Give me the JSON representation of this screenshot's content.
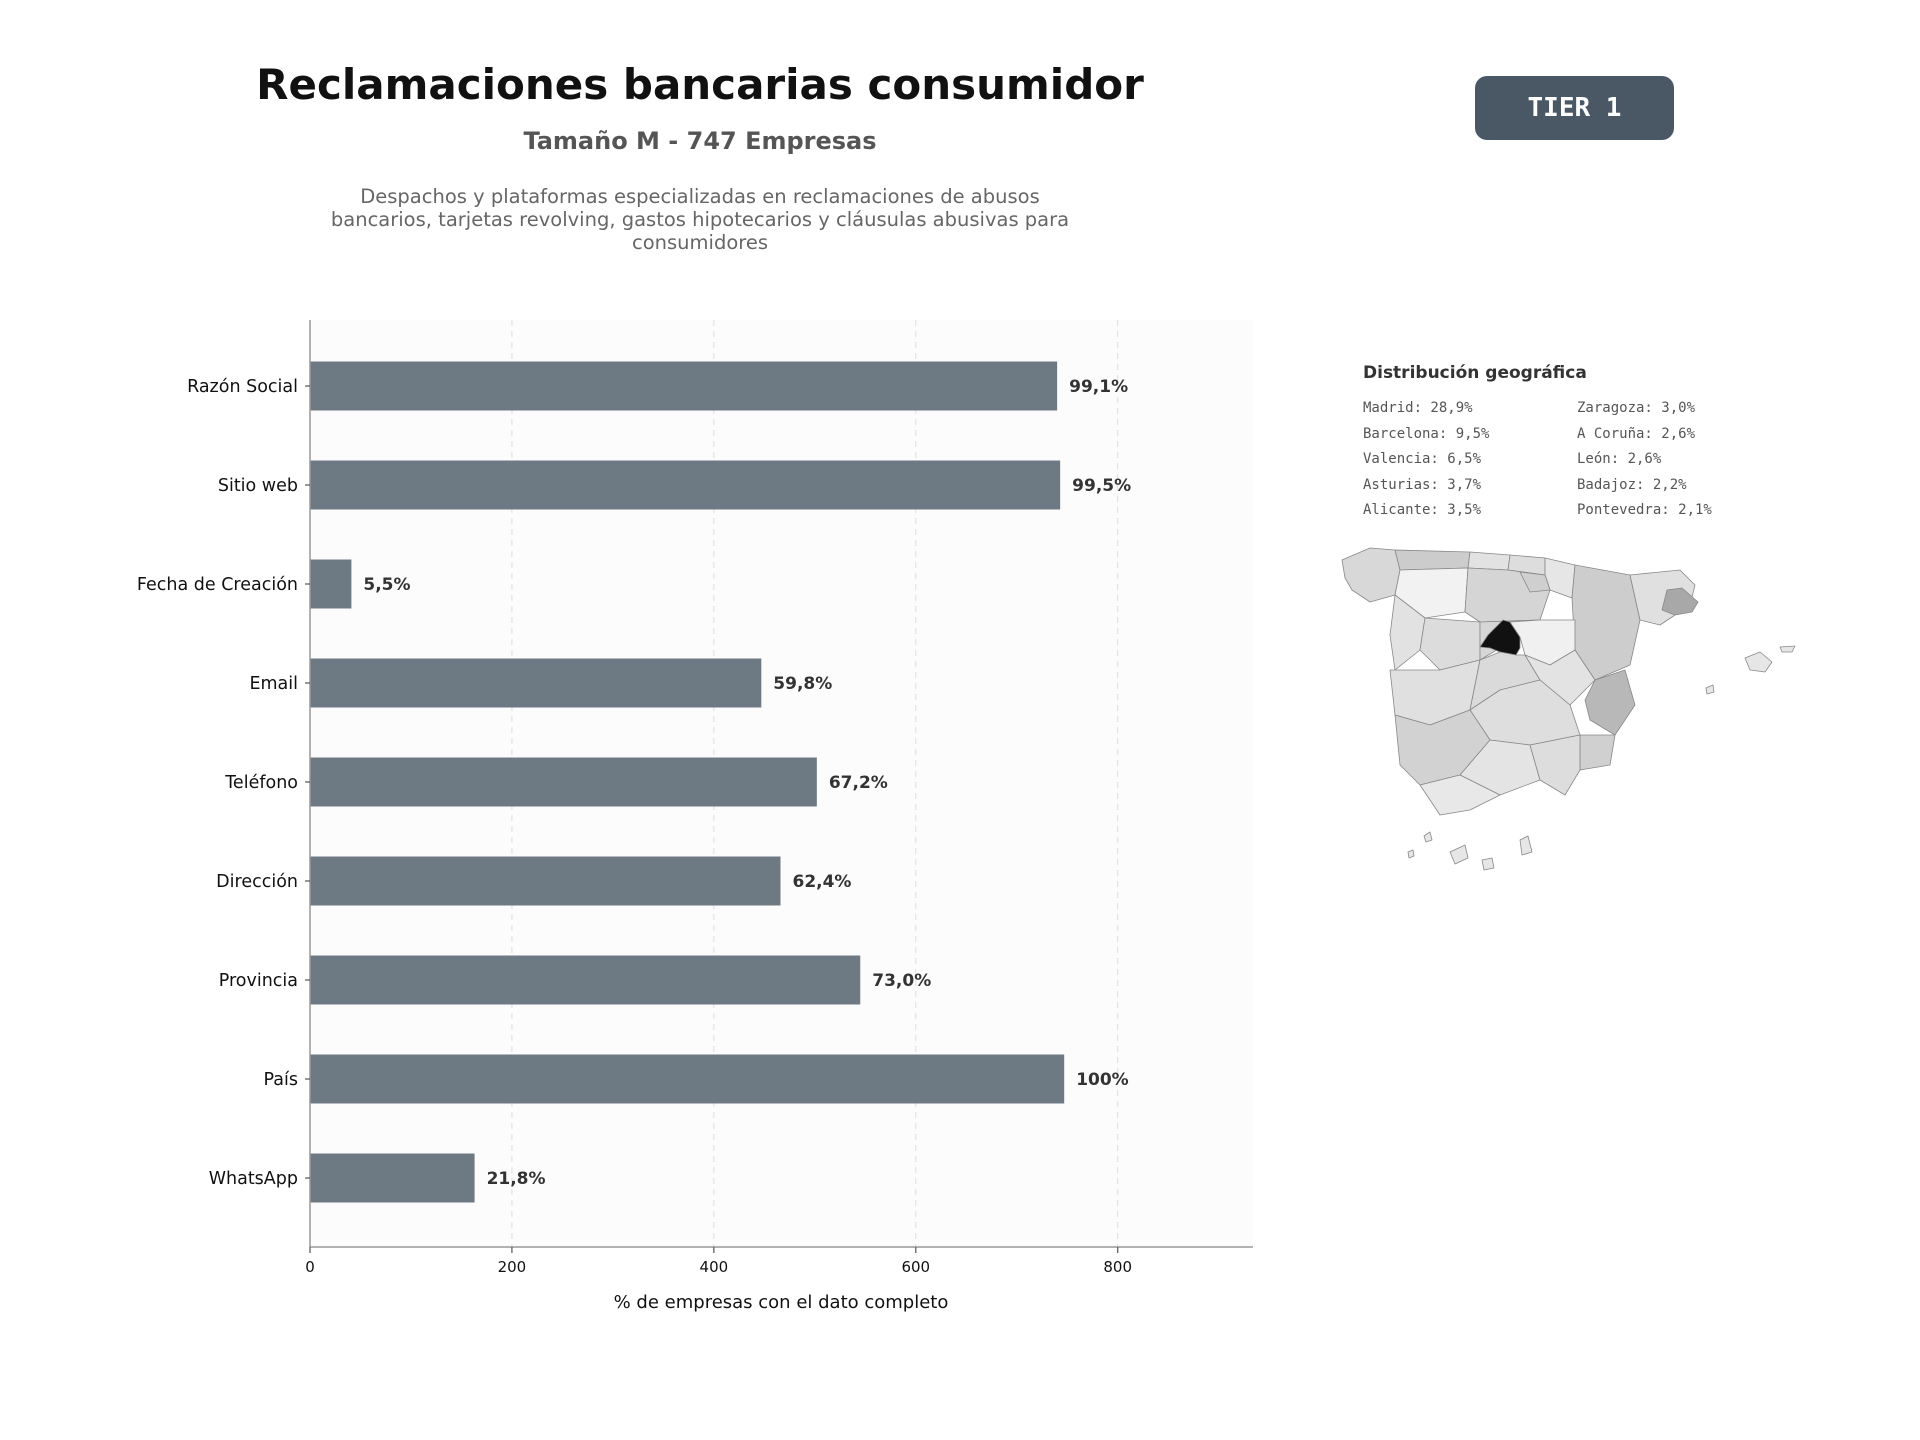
{
  "header": {
    "title": "Reclamaciones bancarias consumidor",
    "subtitle": "Tamaño M - 747 Empresas",
    "description": "Despachos y plataformas especializadas en reclamaciones de abusos bancarios, tarjetas revolving, gastos hipotecarios y cláusulas abusivas para consumidores",
    "tier": "TIER 1"
  },
  "colors": {
    "bar": "#6e7a83",
    "title": "#111111",
    "badge": "#4a5866",
    "highlight_region": "#111111"
  },
  "chart_data": {
    "type": "bar",
    "orientation": "horizontal",
    "categories": [
      "Razón Social",
      "Sitio web",
      "Fecha de Creación",
      "Email",
      "Teléfono",
      "Dirección",
      "Provincia",
      "País",
      "WhatsApp"
    ],
    "values": [
      740,
      743,
      41,
      447,
      502,
      466,
      545,
      747,
      163
    ],
    "data_labels": [
      "99,1%",
      "99,5%",
      "5,5%",
      "59,8%",
      "67,2%",
      "62,4%",
      "73,0%",
      "100%",
      "21,8%"
    ],
    "xlabel": "% de empresas con el dato completo",
    "ylabel": "",
    "xlim": [
      0,
      934
    ],
    "xticks": [
      0,
      200,
      400,
      600,
      800
    ],
    "grid": "vertical-dashed"
  },
  "geo": {
    "title": "Distribución geográfica",
    "items": [
      "Madrid: 28,9%",
      "Zaragoza: 3,0%",
      "Barcelona: 9,5%",
      "A Coruña: 2,6%",
      "Valencia: 6,5%",
      "León: 2,6%",
      "Asturias: 3,7%",
      "Badajoz: 2,2%",
      "Alicante: 3,5%",
      "Pontevedra: 2,1%"
    ]
  }
}
